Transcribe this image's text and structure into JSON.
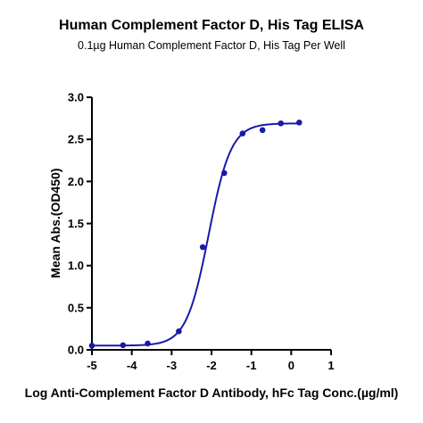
{
  "chart_data": {
    "type": "line",
    "title": "Human Complement Factor D, His Tag ELISA",
    "subtitle": "0.1µg Human Complement Factor D, His Tag Per Well",
    "xlabel": "Log Anti-Complement Factor D  Antibody, hFc Tag Conc.(µg/ml)",
    "ylabel": "Mean Abs.(OD450)",
    "xlim": [
      -5,
      1
    ],
    "ylim": [
      0,
      3.0
    ],
    "x_ticks": [
      -5,
      -4,
      -3,
      -2,
      -1,
      0,
      1
    ],
    "x_tick_labels": [
      "-5",
      "-4",
      "-3",
      "-2",
      "-1",
      "0",
      "1"
    ],
    "y_ticks": [
      0,
      0.5,
      1.0,
      1.5,
      2.0,
      2.5,
      3.0
    ],
    "y_tick_labels": [
      "0.0",
      "0.5",
      "1.0",
      "1.5",
      "2.0",
      "2.5",
      "3.0"
    ],
    "grid": false,
    "series": [
      {
        "color": "#1a1aa8",
        "points": [
          {
            "x": -5.0,
            "y": 0.05
          },
          {
            "x": -4.22,
            "y": 0.055
          },
          {
            "x": -3.6,
            "y": 0.075
          },
          {
            "x": -2.82,
            "y": 0.22
          },
          {
            "x": -2.22,
            "y": 1.22
          },
          {
            "x": -1.68,
            "y": 2.1
          },
          {
            "x": -1.22,
            "y": 2.57
          },
          {
            "x": -0.72,
            "y": 2.61
          },
          {
            "x": -0.26,
            "y": 2.69
          },
          {
            "x": 0.2,
            "y": 2.7
          }
        ],
        "fit": {
          "model": "4PL",
          "bottom": 0.05,
          "top": 2.69,
          "logEC50": -2.07,
          "hill": 1.55,
          "x_range": [
            -5.0,
            0.2
          ]
        }
      }
    ]
  }
}
